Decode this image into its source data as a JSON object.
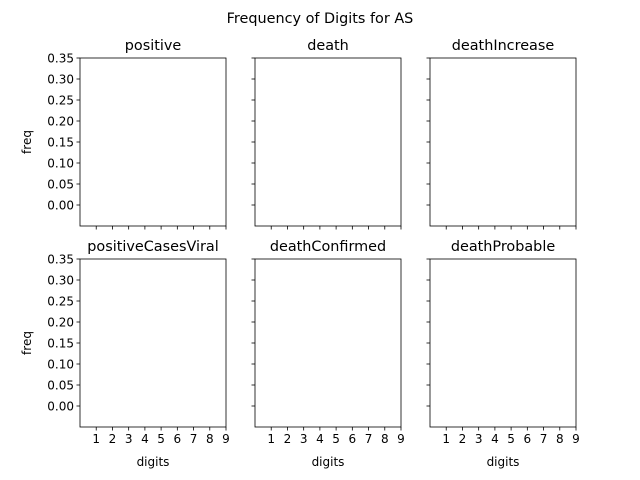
{
  "figure": {
    "suptitle": "Frequency of Digits for AS"
  },
  "chart_data": [
    {
      "type": "bar",
      "title": "positive",
      "xlabel": "",
      "ylabel": "freq",
      "x_ticks": [
        "1",
        "2",
        "3",
        "4",
        "5",
        "6",
        "7",
        "8",
        "9"
      ],
      "y_ticks": [
        "0.00",
        "0.05",
        "0.10",
        "0.15",
        "0.20",
        "0.25",
        "0.30",
        "0.35"
      ],
      "categories": [],
      "values": [],
      "xlim": [
        0,
        9
      ],
      "ylim": [
        -0.05,
        0.35
      ],
      "grid": false
    },
    {
      "type": "bar",
      "title": "death",
      "xlabel": "",
      "ylabel": "",
      "x_ticks": [
        "1",
        "2",
        "3",
        "4",
        "5",
        "6",
        "7",
        "8",
        "9"
      ],
      "y_ticks": [
        "0.00",
        "0.05",
        "0.10",
        "0.15",
        "0.20",
        "0.25",
        "0.30",
        "0.35"
      ],
      "categories": [],
      "values": [],
      "xlim": [
        0,
        9
      ],
      "ylim": [
        -0.05,
        0.35
      ],
      "grid": false
    },
    {
      "type": "bar",
      "title": "deathIncrease",
      "xlabel": "",
      "ylabel": "",
      "x_ticks": [
        "1",
        "2",
        "3",
        "4",
        "5",
        "6",
        "7",
        "8",
        "9"
      ],
      "y_ticks": [
        "0.00",
        "0.05",
        "0.10",
        "0.15",
        "0.20",
        "0.25",
        "0.30",
        "0.35"
      ],
      "categories": [],
      "values": [],
      "xlim": [
        0,
        9
      ],
      "ylim": [
        -0.05,
        0.35
      ],
      "grid": false
    },
    {
      "type": "bar",
      "title": "positiveCasesViral",
      "xlabel": "digits",
      "ylabel": "freq",
      "x_ticks": [
        "1",
        "2",
        "3",
        "4",
        "5",
        "6",
        "7",
        "8",
        "9"
      ],
      "y_ticks": [
        "0.00",
        "0.05",
        "0.10",
        "0.15",
        "0.20",
        "0.25",
        "0.30",
        "0.35"
      ],
      "categories": [],
      "values": [],
      "xlim": [
        0,
        9
      ],
      "ylim": [
        -0.05,
        0.35
      ],
      "grid": false
    },
    {
      "type": "bar",
      "title": "deathConfirmed",
      "xlabel": "digits",
      "ylabel": "",
      "x_ticks": [
        "1",
        "2",
        "3",
        "4",
        "5",
        "6",
        "7",
        "8",
        "9"
      ],
      "y_ticks": [
        "0.00",
        "0.05",
        "0.10",
        "0.15",
        "0.20",
        "0.25",
        "0.30",
        "0.35"
      ],
      "categories": [],
      "values": [],
      "xlim": [
        0,
        9
      ],
      "ylim": [
        -0.05,
        0.35
      ],
      "grid": false
    },
    {
      "type": "bar",
      "title": "deathProbable",
      "xlabel": "digits",
      "ylabel": "",
      "x_ticks": [
        "1",
        "2",
        "3",
        "4",
        "5",
        "6",
        "7",
        "8",
        "9"
      ],
      "y_ticks": [
        "0.00",
        "0.05",
        "0.10",
        "0.15",
        "0.20",
        "0.25",
        "0.30",
        "0.35"
      ],
      "categories": [],
      "values": [],
      "xlim": [
        0,
        9
      ],
      "ylim": [
        -0.05,
        0.35
      ],
      "grid": false
    }
  ]
}
